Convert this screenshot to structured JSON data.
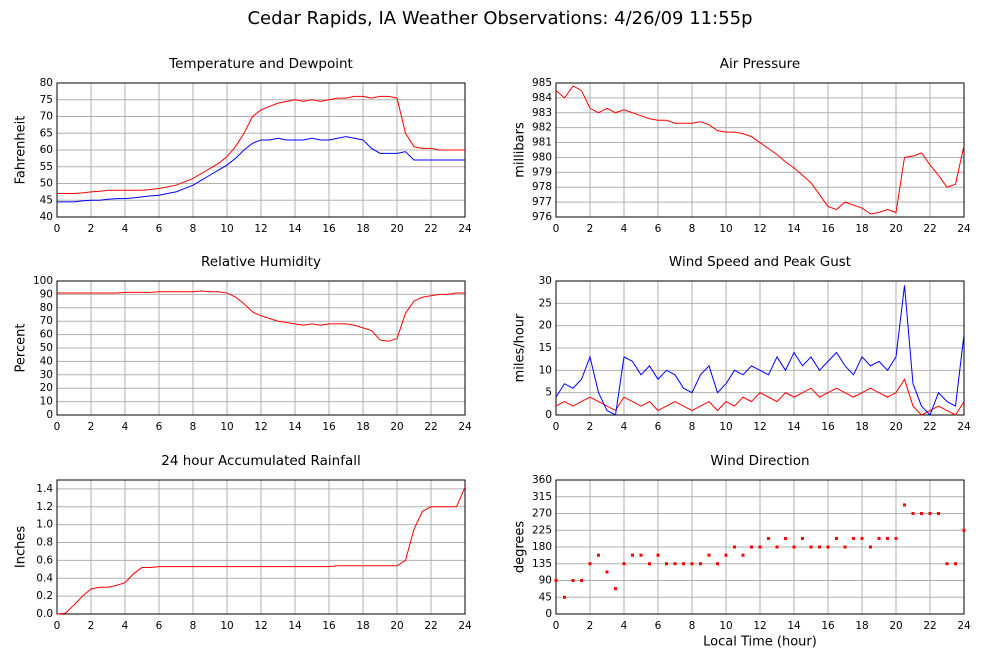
{
  "title": "Cedar Rapids, IA Weather Observations: 4/26/09 11:55p",
  "chart_data": [
    {
      "type": "line",
      "title": "Temperature and Dewpoint",
      "ylabel": "Fahrenheit",
      "x": [
        0,
        0.5,
        1,
        1.5,
        2,
        2.5,
        3,
        3.5,
        4,
        4.5,
        5,
        5.5,
        6,
        6.5,
        7,
        7.5,
        8,
        8.5,
        9,
        9.5,
        10,
        10.5,
        11,
        11.5,
        12,
        12.5,
        13,
        13.5,
        14,
        14.5,
        15,
        15.5,
        16,
        16.5,
        17,
        17.5,
        18,
        18.5,
        19,
        19.5,
        20,
        20.5,
        21,
        21.5,
        22,
        22.5,
        23,
        23.5,
        24
      ],
      "series": [
        {
          "color": "#ff0000",
          "values": [
            47,
            47,
            47,
            47.2,
            47.5,
            47.7,
            48,
            48,
            48,
            48,
            48,
            48.2,
            48.5,
            49,
            49.5,
            50.5,
            51.5,
            53,
            54.5,
            56,
            58,
            61,
            65,
            70,
            72,
            73,
            74,
            74.5,
            75,
            74.5,
            75,
            74.5,
            75,
            75.5,
            75.5,
            76,
            76,
            75.5,
            76,
            76,
            75.5,
            65,
            61,
            60.5,
            60.5,
            60,
            60,
            60,
            60
          ]
        },
        {
          "color": "#0000ff",
          "values": [
            44.5,
            44.5,
            44.5,
            44.8,
            45,
            45,
            45.3,
            45.5,
            45.5,
            45.7,
            46,
            46.3,
            46.5,
            47,
            47.5,
            48.5,
            49.5,
            51,
            52.5,
            54,
            55.5,
            57.5,
            60,
            62,
            63,
            63,
            63.5,
            63,
            63,
            63,
            63.5,
            63,
            63,
            63.5,
            64,
            63.5,
            63,
            60.5,
            59,
            59,
            59,
            59.5,
            57,
            57,
            57,
            57,
            57,
            57,
            57
          ]
        }
      ],
      "xlim": [
        0,
        24
      ],
      "xticks": [
        0,
        2,
        4,
        6,
        8,
        10,
        12,
        14,
        16,
        18,
        20,
        22,
        24
      ],
      "ylim": [
        40,
        80
      ],
      "yticks": [
        40,
        45,
        50,
        55,
        60,
        65,
        70,
        75,
        80
      ],
      "grid": true
    },
    {
      "type": "line",
      "title": "Air Pressure",
      "ylabel": "millibars",
      "x": [
        0,
        0.5,
        1,
        1.5,
        2,
        2.5,
        3,
        3.5,
        4,
        4.5,
        5,
        5.5,
        6,
        6.5,
        7,
        7.5,
        8,
        8.5,
        9,
        9.5,
        10,
        10.5,
        11,
        11.5,
        12,
        12.5,
        13,
        13.5,
        14,
        14.5,
        15,
        15.5,
        16,
        16.5,
        17,
        17.5,
        18,
        18.5,
        19,
        19.5,
        20,
        20.5,
        21,
        21.5,
        22,
        22.5,
        23,
        23.5,
        24
      ],
      "series": [
        {
          "color": "#ff0000",
          "values": [
            984.5,
            984,
            984.8,
            984.5,
            983.3,
            983,
            983.3,
            983,
            983.2,
            983,
            982.8,
            982.6,
            982.5,
            982.5,
            982.3,
            982.3,
            982.3,
            982.4,
            982.2,
            981.8,
            981.7,
            981.7,
            981.6,
            981.4,
            981,
            980.6,
            980.2,
            979.7,
            979.3,
            978.8,
            978.3,
            977.5,
            976.7,
            976.5,
            977,
            976.8,
            976.6,
            976.2,
            976.3,
            976.5,
            976.3,
            980,
            980.1,
            980.3,
            979.5,
            978.8,
            978,
            978.2,
            980.8
          ]
        }
      ],
      "xlim": [
        0,
        24
      ],
      "xticks": [
        0,
        2,
        4,
        6,
        8,
        10,
        12,
        14,
        16,
        18,
        20,
        22,
        24
      ],
      "ylim": [
        976,
        985
      ],
      "yticks": [
        976,
        977,
        978,
        979,
        980,
        981,
        982,
        983,
        984,
        985
      ],
      "grid": true
    },
    {
      "type": "line",
      "title": "Relative Humidity",
      "ylabel": "Percent",
      "x": [
        0,
        0.5,
        1,
        1.5,
        2,
        2.5,
        3,
        3.5,
        4,
        4.5,
        5,
        5.5,
        6,
        6.5,
        7,
        7.5,
        8,
        8.5,
        9,
        9.5,
        10,
        10.5,
        11,
        11.5,
        12,
        12.5,
        13,
        13.5,
        14,
        14.5,
        15,
        15.5,
        16,
        16.5,
        17,
        17.5,
        18,
        18.5,
        19,
        19.5,
        20,
        20.5,
        21,
        21.5,
        22,
        22.5,
        23,
        23.5,
        24
      ],
      "series": [
        {
          "color": "#ff0000",
          "values": [
            91,
            91,
            91,
            91,
            91,
            91,
            91,
            91,
            91.5,
            91.5,
            91.5,
            91.5,
            92,
            92,
            92,
            92,
            92,
            92.5,
            92,
            92,
            91,
            88,
            83,
            77,
            74,
            72,
            70,
            69,
            68,
            67,
            68,
            67,
            68,
            68,
            68,
            67,
            65,
            63,
            56,
            55,
            57,
            76,
            85,
            88,
            89,
            90,
            90,
            91,
            91
          ]
        }
      ],
      "xlim": [
        0,
        24
      ],
      "xticks": [
        0,
        2,
        4,
        6,
        8,
        10,
        12,
        14,
        16,
        18,
        20,
        22,
        24
      ],
      "ylim": [
        0,
        100
      ],
      "yticks": [
        0,
        10,
        20,
        30,
        40,
        50,
        60,
        70,
        80,
        90,
        100
      ],
      "grid": true
    },
    {
      "type": "line",
      "title": "Wind Speed and Peak Gust",
      "ylabel": "miles/hour",
      "x": [
        0,
        0.5,
        1,
        1.5,
        2,
        2.5,
        3,
        3.5,
        4,
        4.5,
        5,
        5.5,
        6,
        6.5,
        7,
        7.5,
        8,
        8.5,
        9,
        9.5,
        10,
        10.5,
        11,
        11.5,
        12,
        12.5,
        13,
        13.5,
        14,
        14.5,
        15,
        15.5,
        16,
        16.5,
        17,
        17.5,
        18,
        18.5,
        19,
        19.5,
        20,
        20.5,
        21,
        21.5,
        22,
        22.5,
        23,
        23.5,
        24
      ],
      "series": [
        {
          "color": "#ff0000",
          "values": [
            2,
            3,
            2,
            3,
            4,
            3,
            2,
            1,
            4,
            3,
            2,
            3,
            1,
            2,
            3,
            2,
            1,
            2,
            3,
            1,
            3,
            2,
            4,
            3,
            5,
            4,
            3,
            5,
            4,
            5,
            6,
            4,
            5,
            6,
            5,
            4,
            5,
            6,
            5,
            4,
            5,
            8,
            2,
            0,
            1,
            2,
            1,
            0,
            3
          ]
        },
        {
          "color": "#0000ff",
          "values": [
            4,
            7,
            6,
            8,
            13,
            5,
            1,
            0,
            13,
            12,
            9,
            11,
            8,
            10,
            9,
            6,
            5,
            9,
            11,
            5,
            7,
            10,
            9,
            11,
            10,
            9,
            13,
            10,
            14,
            11,
            13,
            10,
            12,
            14,
            11,
            9,
            13,
            11,
            12,
            10,
            13,
            29,
            7,
            2,
            0,
            5,
            3,
            2,
            18
          ]
        }
      ],
      "xlim": [
        0,
        24
      ],
      "xticks": [
        0,
        2,
        4,
        6,
        8,
        10,
        12,
        14,
        16,
        18,
        20,
        22,
        24
      ],
      "ylim": [
        0,
        30
      ],
      "yticks": [
        0,
        5,
        10,
        15,
        20,
        25,
        30
      ],
      "grid": true
    },
    {
      "type": "line",
      "title": "24 hour Accumulated Rainfall",
      "ylabel": "Inches",
      "x": [
        0,
        0.5,
        1,
        1.5,
        2,
        2.5,
        3,
        3.5,
        4,
        4.5,
        5,
        5.5,
        6,
        6.5,
        7,
        7.5,
        8,
        8.5,
        9,
        9.5,
        10,
        10.5,
        11,
        11.5,
        12,
        12.5,
        13,
        13.5,
        14,
        14.5,
        15,
        15.5,
        16,
        16.5,
        17,
        17.5,
        18,
        18.5,
        19,
        19.5,
        20,
        20.5,
        21,
        21.5,
        22,
        22.5,
        23,
        23.5,
        24
      ],
      "series": [
        {
          "color": "#ff0000",
          "values": [
            0,
            0.01,
            0.1,
            0.2,
            0.28,
            0.3,
            0.3,
            0.32,
            0.35,
            0.45,
            0.52,
            0.52,
            0.53,
            0.53,
            0.53,
            0.53,
            0.53,
            0.53,
            0.53,
            0.53,
            0.53,
            0.53,
            0.53,
            0.53,
            0.53,
            0.53,
            0.53,
            0.53,
            0.53,
            0.53,
            0.53,
            0.53,
            0.53,
            0.54,
            0.54,
            0.54,
            0.54,
            0.54,
            0.54,
            0.54,
            0.54,
            0.6,
            0.95,
            1.15,
            1.2,
            1.2,
            1.2,
            1.2,
            1.42
          ]
        }
      ],
      "xlim": [
        0,
        24
      ],
      "xticks": [
        0,
        2,
        4,
        6,
        8,
        10,
        12,
        14,
        16,
        18,
        20,
        22,
        24
      ],
      "ylim": [
        0,
        1.5
      ],
      "yticks": [
        {
          "value": 0,
          "label": "0.0"
        },
        0.2,
        0.4,
        0.6,
        0.8,
        {
          "value": 1,
          "label": "1.0"
        },
        1.2,
        1.4
      ],
      "grid": true
    },
    {
      "type": "scatter",
      "title": "Wind Direction",
      "ylabel": "degrees",
      "xlabel": "Local Time (hour)",
      "x": [
        0,
        0.5,
        1,
        1.5,
        2,
        2.5,
        3,
        3.5,
        4,
        4.5,
        5,
        5.5,
        6,
        6.5,
        7,
        7.5,
        8,
        8.5,
        9,
        9.5,
        10,
        10.5,
        11,
        11.5,
        12,
        12.5,
        13,
        13.5,
        14,
        14.5,
        15,
        15.5,
        16,
        16.5,
        17,
        17.5,
        18,
        18.5,
        19,
        19.5,
        20,
        20.5,
        21,
        21.5,
        22,
        22.5,
        23,
        23.5,
        24
      ],
      "series": [
        {
          "color": "#ff0000",
          "values": [
            90,
            45,
            90,
            90,
            135,
            158,
            113,
            68,
            135,
            158,
            158,
            135,
            158,
            135,
            135,
            135,
            135,
            135,
            158,
            135,
            158,
            180,
            158,
            180,
            180,
            203,
            180,
            203,
            180,
            203,
            180,
            180,
            180,
            203,
            180,
            203,
            203,
            180,
            203,
            203,
            203,
            293,
            270,
            270,
            270,
            270,
            135,
            135,
            225
          ]
        }
      ],
      "xlim": [
        0,
        24
      ],
      "xticks": [
        0,
        2,
        4,
        6,
        8,
        10,
        12,
        14,
        16,
        18,
        20,
        22,
        24
      ],
      "ylim": [
        0,
        360
      ],
      "yticks": [
        0,
        45,
        90,
        135,
        180,
        225,
        270,
        315,
        360
      ],
      "grid": true
    }
  ]
}
